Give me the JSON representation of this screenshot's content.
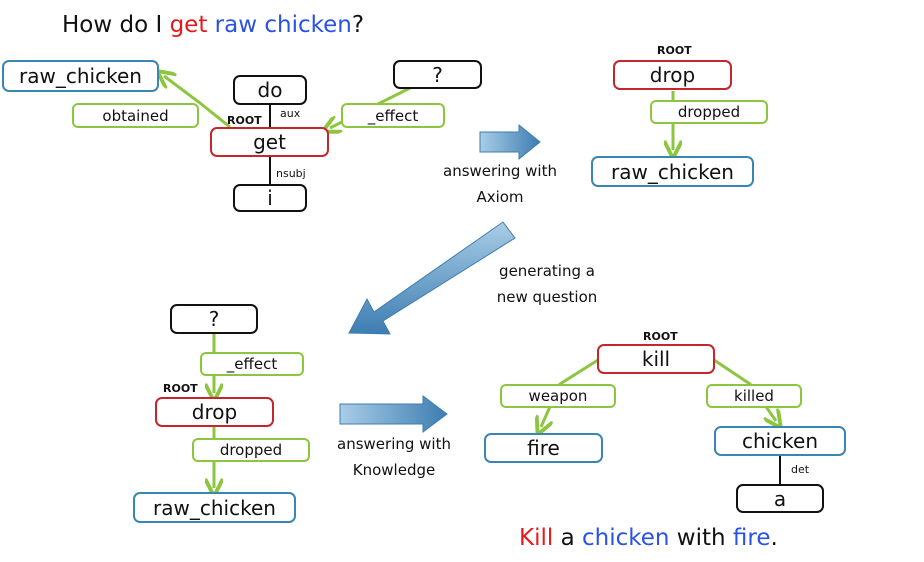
{
  "title": {
    "prefix": "How do I ",
    "verb": "get",
    "space": " ",
    "object": "raw chicken",
    "suffix": "?"
  },
  "root_label": "ROOT",
  "graph1": {
    "raw_chicken": "raw_chicken",
    "do": "do",
    "question": "?",
    "get": "get",
    "i": "i",
    "obtained": "obtained",
    "effect": "_effect",
    "aux": "aux",
    "nsubj": "nsubj"
  },
  "graph2": {
    "drop": "drop",
    "dropped": "dropped",
    "raw_chicken": "raw_chicken"
  },
  "arrow1_caption": {
    "line1": "answering with",
    "line2": "Axiom"
  },
  "arrow2_caption": {
    "line1": "generating a",
    "line2": "new question"
  },
  "graph3": {
    "question": "?",
    "effect": "_effect",
    "drop": "drop",
    "dropped": "dropped",
    "raw_chicken": "raw_chicken"
  },
  "arrow3_caption": {
    "line1": "answering with",
    "line2": "Knowledge"
  },
  "graph4": {
    "kill": "kill",
    "weapon": "weapon",
    "killed": "killed",
    "fire": "fire",
    "chicken": "chicken",
    "det": "det",
    "a": "a"
  },
  "answer": {
    "kill": "Kill",
    "a": " a ",
    "chicken": "chicken",
    "with": " with ",
    "fire": "fire",
    "period": "."
  },
  "colors": {
    "red": "#e41a1c",
    "blue": "#2a52e6",
    "node_blue": "#3a86b3",
    "node_red": "#c1272d",
    "edge_green": "#8cc63f",
    "arrow_blue": "#4f8bbf"
  }
}
